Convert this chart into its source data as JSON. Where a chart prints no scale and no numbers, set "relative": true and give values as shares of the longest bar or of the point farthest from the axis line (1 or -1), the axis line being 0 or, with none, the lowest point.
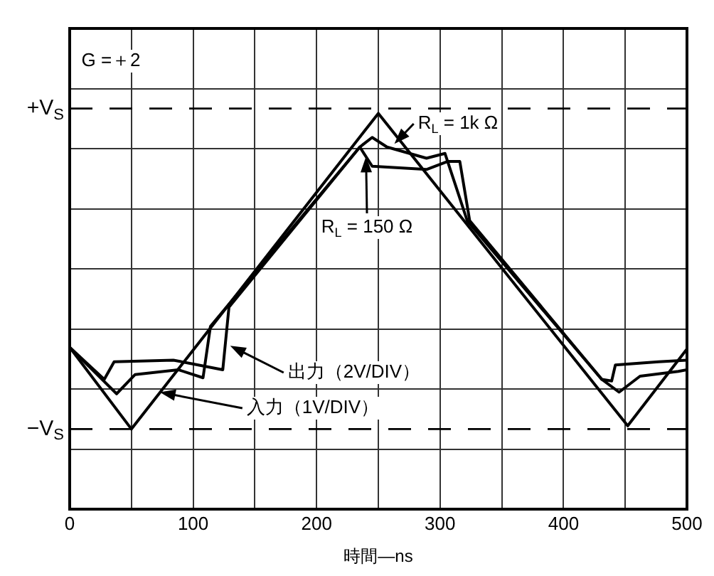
{
  "chart_data": {
    "type": "line",
    "xlabel": "時間—ns",
    "series": [
      {
        "color": "#000000",
        "values": [
          -0.49,
          -1.0,
          0.97,
          -0.98,
          -0.5
        ],
        "x": [
          0,
          50,
          250,
          452,
          500
        ]
      },
      {
        "color": "#000000",
        "values": [
          -0.49,
          -0.69,
          -0.58,
          -0.57,
          -0.63,
          -0.24,
          0.76,
          0.82,
          0.76,
          0.69,
          0.72,
          0.3,
          -0.69,
          -0.7,
          -0.6,
          -0.58,
          -0.57
        ],
        "x": [
          0,
          28,
          36,
          84,
          124,
          129,
          235,
          245,
          257,
          289,
          304,
          322,
          431,
          439,
          442,
          477,
          500
        ]
      },
      {
        "color": "#000000",
        "values": [
          -0.49,
          -0.78,
          -0.66,
          -0.63,
          -0.68,
          -0.36,
          0.76,
          0.64,
          0.62,
          0.67,
          0.67,
          0.3,
          -0.69,
          -0.77,
          -0.67,
          -0.64,
          -0.63
        ],
        "x": [
          0,
          38,
          53,
          88,
          108,
          114,
          235,
          245,
          289,
          306,
          316,
          324,
          431,
          445,
          462,
          493,
          500
        ]
      }
    ],
    "xlim": [
      0,
      500
    ],
    "xticks": [
      0,
      {
        "value": 50,
        "label": null
      },
      100,
      {
        "value": 150,
        "label": null
      },
      200,
      {
        "value": 250,
        "label": null
      },
      300,
      {
        "value": 350,
        "label": null
      },
      400,
      {
        "value": 450,
        "label": null
      },
      500
    ],
    "relative": true,
    "ref_lines": [
      {
        "axis": "y",
        "value": 1,
        "label": "+V$_{S}$",
        "line_style": "dashed",
        "color": "#000000"
      },
      {
        "axis": "y",
        "value": -1,
        "label": "−V$_{S}$",
        "line_style": "dashed",
        "color": "#000000"
      }
    ],
    "grid": true,
    "legend": false,
    "marker": "none",
    "line_style": "solid",
    "annotations": [
      "G =＋2",
      {
        "text": "R$_{L}$ = 1k Ω",
        "x": 263,
        "y": 0.78
      },
      {
        "text": "R$_{L}$ = 150 Ω",
        "x": 240,
        "y": 0.7
      },
      {
        "text": "出力（2V/DIV）",
        "x": 130,
        "y": -0.48
      },
      {
        "text": "入力（1V/DIV）",
        "x": 73,
        "y": -0.77
      }
    ]
  }
}
